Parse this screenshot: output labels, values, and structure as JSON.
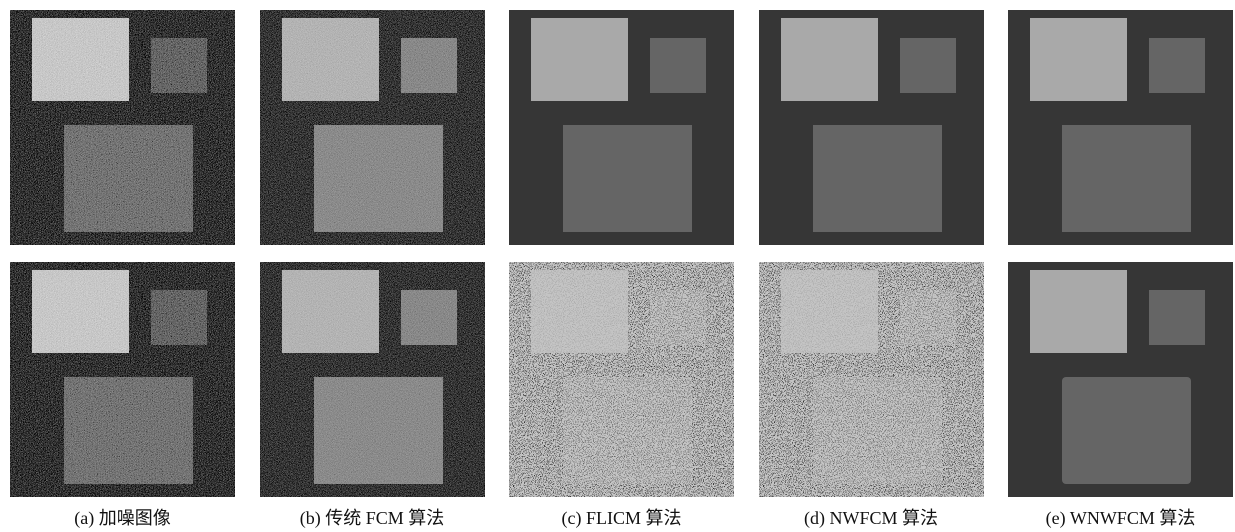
{
  "figure": {
    "captions": [
      "(a) 加噪图像",
      "(b) 传统 FCM 算法",
      "(c) FLICM 算法",
      "(d) NWFCM 算法",
      "(e) WNWFCM 算法"
    ]
  }
}
